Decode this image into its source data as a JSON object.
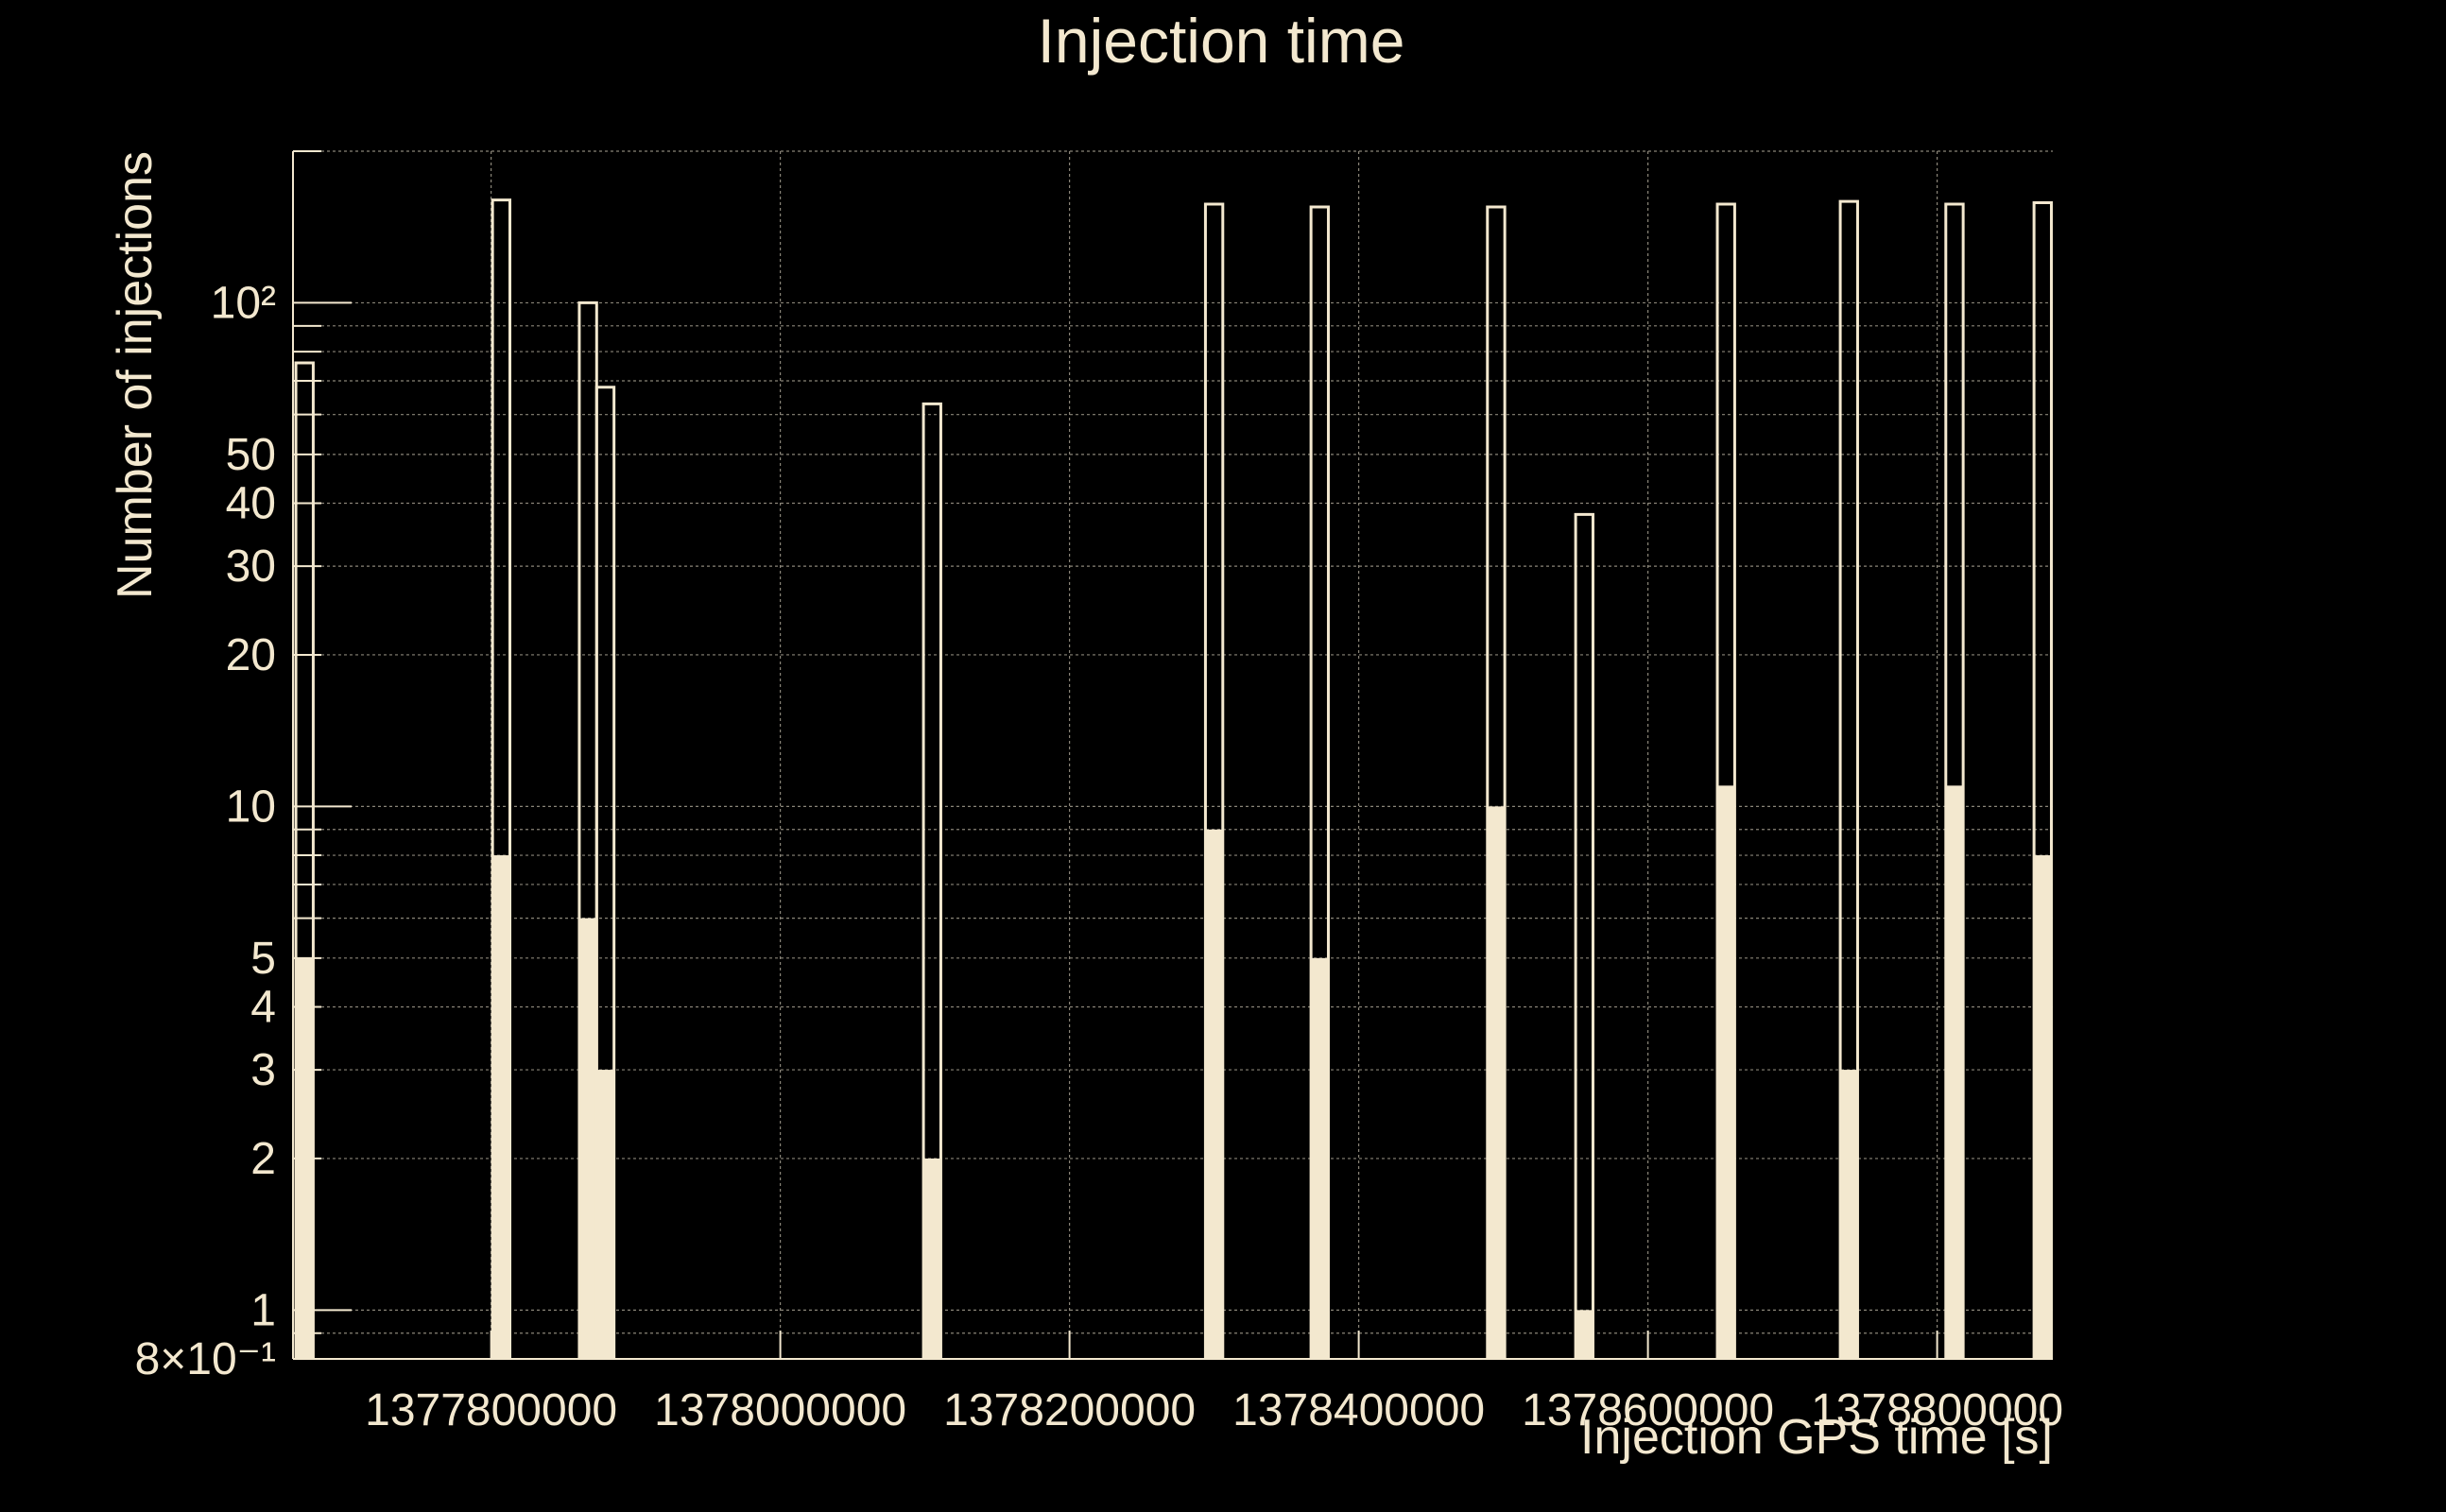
{
  "colors": {
    "background": "#000000",
    "foreground": "#f3e8cf",
    "grid": "#8a8578"
  },
  "chart_data": {
    "type": "bar",
    "title": "Injection time",
    "xlabel": "Injection GPS time [s]",
    "ylabel": "Number of injections",
    "yscale": "log",
    "xlim": [
      1377663000,
      1378880000
    ],
    "ylim": [
      0.8,
      200
    ],
    "grid": true,
    "x_ticks": [
      {
        "value": 1377800000,
        "label": "1377800000"
      },
      {
        "value": 1378000000,
        "label": "1378000000"
      },
      {
        "value": 1378200000,
        "label": "1378200000"
      },
      {
        "value": 1378400000,
        "label": "1378400000"
      },
      {
        "value": 1378600000,
        "label": "1378600000"
      },
      {
        "value": 1378800000,
        "label": "1378800000"
      }
    ],
    "y_ticks": [
      {
        "value": 0.8,
        "label": "8×10⁻¹"
      },
      {
        "value": 1,
        "label": "1"
      },
      {
        "value": 2,
        "label": "2"
      },
      {
        "value": 3,
        "label": "3"
      },
      {
        "value": 4,
        "label": "4"
      },
      {
        "value": 5,
        "label": "5"
      },
      {
        "value": 10,
        "label": "10"
      },
      {
        "value": 20,
        "label": "20"
      },
      {
        "value": 30,
        "label": "30"
      },
      {
        "value": 40,
        "label": "40"
      },
      {
        "value": 50,
        "label": "50"
      },
      {
        "value": 100,
        "label": "10²"
      }
    ],
    "series": [
      {
        "style": "outline",
        "bins": [
          {
            "x0": 1377665000,
            "x1": 1377677000,
            "value": 76
          },
          {
            "x0": 1377801000,
            "x1": 1377813000,
            "value": 160
          },
          {
            "x0": 1377861000,
            "x1": 1377873000,
            "value": 100
          },
          {
            "x0": 1377873000,
            "x1": 1377885000,
            "value": 68
          },
          {
            "x0": 1378099000,
            "x1": 1378111000,
            "value": 63
          },
          {
            "x0": 1378294000,
            "x1": 1378306000,
            "value": 157
          },
          {
            "x0": 1378367000,
            "x1": 1378379000,
            "value": 155
          },
          {
            "x0": 1378489000,
            "x1": 1378501000,
            "value": 155
          },
          {
            "x0": 1378550000,
            "x1": 1378562000,
            "value": 38
          },
          {
            "x0": 1378648000,
            "x1": 1378660000,
            "value": 157
          },
          {
            "x0": 1378733000,
            "x1": 1378745000,
            "value": 159
          },
          {
            "x0": 1378806000,
            "x1": 1378818000,
            "value": 157
          },
          {
            "x0": 1378867000,
            "x1": 1378879000,
            "value": 158
          }
        ]
      },
      {
        "style": "filled",
        "bins": [
          {
            "x0": 1377665000,
            "x1": 1377677000,
            "value": 5
          },
          {
            "x0": 1377801000,
            "x1": 1377813000,
            "value": 8
          },
          {
            "x0": 1377861000,
            "x1": 1377873000,
            "value": 6
          },
          {
            "x0": 1377873000,
            "x1": 1377885000,
            "value": 3
          },
          {
            "x0": 1378099000,
            "x1": 1378111000,
            "value": 2
          },
          {
            "x0": 1378294000,
            "x1": 1378306000,
            "value": 9
          },
          {
            "x0": 1378367000,
            "x1": 1378379000,
            "value": 5
          },
          {
            "x0": 1378489000,
            "x1": 1378501000,
            "value": 10
          },
          {
            "x0": 1378550000,
            "x1": 1378562000,
            "value": 1
          },
          {
            "x0": 1378648000,
            "x1": 1378660000,
            "value": 11
          },
          {
            "x0": 1378733000,
            "x1": 1378745000,
            "value": 3
          },
          {
            "x0": 1378806000,
            "x1": 1378818000,
            "value": 11
          },
          {
            "x0": 1378867000,
            "x1": 1378879000,
            "value": 8
          }
        ]
      }
    ]
  }
}
